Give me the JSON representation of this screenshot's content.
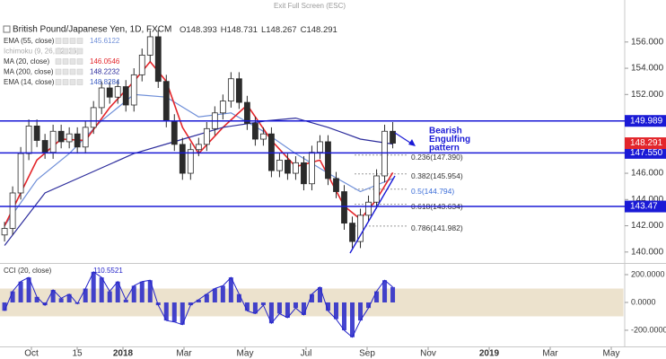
{
  "top_hint": "Exit Full Screen (ESC)",
  "chart_data": [
    {
      "type": "candlestick",
      "title": "British Pound/Japanese Yen, 1D, FXCM",
      "ohlc_legend": [
        {
          "label": "O",
          "value": 148.393
        },
        {
          "label": "H",
          "value": 148.731
        },
        {
          "label": "L",
          "value": 148.267
        },
        {
          "label": "C",
          "value": 148.291
        }
      ],
      "x": [
        0.12,
        0.385,
        0.65,
        0.915,
        1.18,
        1.445,
        1.71,
        1.975,
        2.24,
        2.505,
        2.77,
        3.035,
        3.3,
        3.565,
        3.83,
        4.095,
        4.36,
        4.625,
        4.89,
        5.155,
        5.42,
        5.685,
        5.95,
        6.215,
        6.48,
        6.745,
        7.01,
        7.275,
        7.54,
        7.805,
        8.07,
        8.335,
        8.6,
        8.865,
        9.13,
        9.395,
        9.66,
        9.925,
        10.19,
        10.455,
        10.72,
        10.985,
        11.25,
        11.515,
        11.78,
        12.045,
        12.31,
        12.575,
        12.84
      ],
      "open": [
        141.3,
        141.8,
        144.5,
        147.5,
        149.6,
        148.5,
        147.6,
        149.2,
        148.4,
        149.0,
        148.0,
        149.5,
        151.0,
        152.5,
        151.8,
        152.6,
        151.2,
        153.5,
        155.0,
        156.4,
        153.0,
        150.0,
        148.2,
        146.0,
        147.8,
        148.2,
        149.4,
        150.6,
        151.5,
        153.2,
        151.4,
        149.8,
        148.6,
        149.0,
        146.2,
        147.0,
        146.0,
        146.8,
        145.2,
        147.6,
        148.4,
        145.6,
        144.6,
        142.2,
        140.8,
        142.8,
        143.8,
        145.8,
        149.2
      ],
      "high": [
        142.3,
        145.0,
        148.0,
        150.1,
        150.1,
        149.0,
        149.7,
        149.7,
        149.5,
        149.5,
        150.0,
        151.5,
        153.0,
        153.0,
        153.1,
        153.1,
        154.0,
        155.5,
        156.9,
        156.9,
        153.5,
        150.5,
        148.7,
        148.3,
        148.7,
        149.9,
        151.1,
        152.0,
        153.7,
        153.7,
        151.9,
        150.3,
        149.5,
        149.5,
        147.5,
        147.5,
        147.3,
        147.3,
        148.1,
        148.9,
        148.9,
        146.1,
        145.1,
        142.7,
        143.3,
        144.3,
        146.3,
        149.7,
        149.9
      ],
      "low": [
        140.8,
        141.3,
        144.0,
        147.0,
        148.0,
        147.1,
        147.1,
        147.9,
        147.9,
        147.5,
        147.5,
        149.0,
        150.5,
        151.3,
        151.3,
        150.7,
        150.7,
        153.0,
        154.5,
        152.5,
        149.5,
        147.7,
        145.5,
        145.5,
        147.3,
        147.7,
        148.9,
        150.1,
        151.0,
        150.9,
        149.3,
        148.1,
        148.1,
        145.7,
        145.7,
        145.5,
        145.5,
        144.7,
        144.7,
        147.1,
        145.1,
        144.1,
        141.7,
        140.3,
        140.3,
        142.3,
        143.3,
        145.3,
        147.9
      ],
      "close": [
        141.8,
        144.5,
        147.5,
        149.6,
        148.5,
        147.6,
        149.2,
        148.4,
        149.0,
        148.0,
        149.5,
        151.0,
        152.5,
        151.8,
        152.6,
        151.2,
        153.5,
        155.0,
        156.4,
        153.0,
        150.0,
        148.2,
        146.0,
        147.8,
        148.2,
        149.4,
        150.6,
        151.5,
        153.2,
        151.4,
        149.8,
        148.6,
        149.0,
        146.2,
        147.0,
        146.0,
        146.8,
        145.2,
        147.6,
        148.4,
        145.6,
        144.6,
        142.2,
        140.8,
        142.8,
        143.8,
        145.8,
        149.2,
        148.291
      ],
      "up_color": "#ffffff",
      "down_color": "#2b2b2b",
      "wick_color": "#2b2b2b",
      "overlays": [
        {
          "name": "EMA (55, close)",
          "legend_value": 145.6122,
          "color": "#6f8fd8",
          "x": [
            0.12,
            1.18,
            2.24,
            3.3,
            4.36,
            5.42,
            6.48,
            7.54,
            8.6,
            9.66,
            10.72,
            11.78,
            12.84
          ],
          "values": [
            142.0,
            145.5,
            147.5,
            150.0,
            152.0,
            151.8,
            150.3,
            150.6,
            149.2,
            147.5,
            146.0,
            144.6,
            145.6
          ]
        },
        {
          "name": "Ichimoku (9, 26, 52, 26)",
          "color": "#a9b4c8"
        },
        {
          "name": "MA (20, close)",
          "legend_value": 146.0546,
          "color": "#e3262b",
          "x": [
            0.12,
            1.18,
            1.975,
            2.77,
            3.565,
            4.36,
            4.89,
            5.42,
            5.95,
            6.48,
            7.275,
            8.07,
            8.865,
            9.66,
            10.455,
            11.25,
            11.78,
            12.31,
            12.84
          ],
          "values": [
            142.0,
            147.0,
            148.6,
            148.5,
            151.0,
            153.0,
            154.5,
            153.0,
            149.5,
            147.5,
            149.5,
            151.2,
            148.5,
            146.5,
            147.0,
            143.5,
            142.5,
            144.0,
            146.0546
          ]
        },
        {
          "name": "MA (200, close)",
          "legend_value": 148.2232,
          "color": "#2c2c9c",
          "x": [
            0.12,
            1.445,
            2.905,
            4.36,
            5.82,
            7.275,
            8.735,
            9.66,
            10.72,
            11.78,
            12.84
          ],
          "values": [
            140.5,
            144.5,
            146.0,
            147.5,
            148.5,
            149.5,
            150.0,
            150.2,
            149.5,
            148.6,
            148.2232
          ]
        },
        {
          "name": "EMA (14, close)",
          "legend_value": 148.8284,
          "color": "#3f5fc4"
        }
      ],
      "levels": [
        149.989,
        {
          "value": 147.55,
          "label": "147.550"
        },
        143.47
      ],
      "level_color": "#1a1ad6",
      "last_price": 148.291,
      "last_price_color": "#e3262b",
      "fib": [
        {
          "value": 147.39,
          "label": "0.236(147.390)"
        },
        {
          "value": 145.954,
          "label": "0.382(145.954)"
        },
        {
          "value": 144.794,
          "label": "0.5(144.794)"
        },
        {
          "value": 143.634,
          "label": "0.618(143.634)"
        },
        {
          "value": 141.982,
          "label": "0.786(141.982)"
        }
      ],
      "annotation": [
        "Bearish",
        "Engulfing",
        "pattern"
      ],
      "xlim": [
        0,
        20.4
      ],
      "xticks": [
        {
          "value": 1,
          "label": "Oct"
        },
        {
          "value": 2.5,
          "label": "15"
        },
        {
          "value": 4,
          "label": "2018"
        },
        {
          "value": 6,
          "label": "Mar"
        },
        {
          "value": 8,
          "label": "May"
        },
        {
          "value": 10,
          "label": "Jul"
        },
        {
          "value": 12,
          "label": "Sep"
        },
        {
          "value": 14,
          "label": "Nov"
        },
        {
          "value": 16,
          "label": "2019"
        },
        {
          "value": 18,
          "label": "Mar"
        },
        {
          "value": 20,
          "label": "May"
        }
      ],
      "ylim": [
        139.2,
        159.2
      ],
      "yticks": [
        {
          "value": 140,
          "label": "140.000"
        },
        {
          "value": 142,
          "label": "142.000"
        },
        {
          "value": 144,
          "label": "144.000"
        },
        {
          "value": 146,
          "label": "146.000"
        },
        {
          "value": 148,
          "label": "148.000"
        },
        {
          "value": 150,
          "label": "150.000"
        },
        {
          "value": 152,
          "label": "152.000"
        },
        {
          "value": 154,
          "label": "154.000"
        },
        {
          "value": 156,
          "label": "156.000"
        }
      ]
    },
    {
      "type": "bar",
      "legend": {
        "label": "CCI (20, close)",
        "value": 110.5521
      },
      "color": "#2323c8",
      "x": [
        0.12,
        0.385,
        0.65,
        0.915,
        1.18,
        1.445,
        1.71,
        1.975,
        2.24,
        2.505,
        2.77,
        3.035,
        3.3,
        3.565,
        3.83,
        4.095,
        4.36,
        4.625,
        4.89,
        5.155,
        5.42,
        5.685,
        5.95,
        6.215,
        6.48,
        6.745,
        7.01,
        7.275,
        7.54,
        7.805,
        8.07,
        8.335,
        8.6,
        8.865,
        9.13,
        9.395,
        9.66,
        9.925,
        10.19,
        10.455,
        10.72,
        10.985,
        11.25,
        11.515,
        11.78,
        12.045,
        12.31,
        12.575,
        12.84
      ],
      "values": [
        -60,
        80,
        150,
        180,
        40,
        -20,
        90,
        30,
        60,
        -10,
        100,
        220,
        180,
        80,
        150,
        20,
        120,
        150,
        160,
        -20,
        -130,
        -140,
        -160,
        -20,
        20,
        60,
        100,
        120,
        180,
        60,
        -60,
        -80,
        -20,
        -150,
        -80,
        -110,
        -40,
        -90,
        60,
        110,
        -60,
        -120,
        -200,
        -250,
        -130,
        -40,
        80,
        160,
        110.5521
      ],
      "band": [
        -100,
        100
      ],
      "band_color": "#ece2cd",
      "ylim": [
        -310,
        271
      ],
      "yticks": [
        {
          "value": -200,
          "label": "-200.0000"
        },
        {
          "value": 0,
          "label": "0.0000"
        },
        {
          "value": 200,
          "label": "200.0000"
        }
      ]
    }
  ]
}
